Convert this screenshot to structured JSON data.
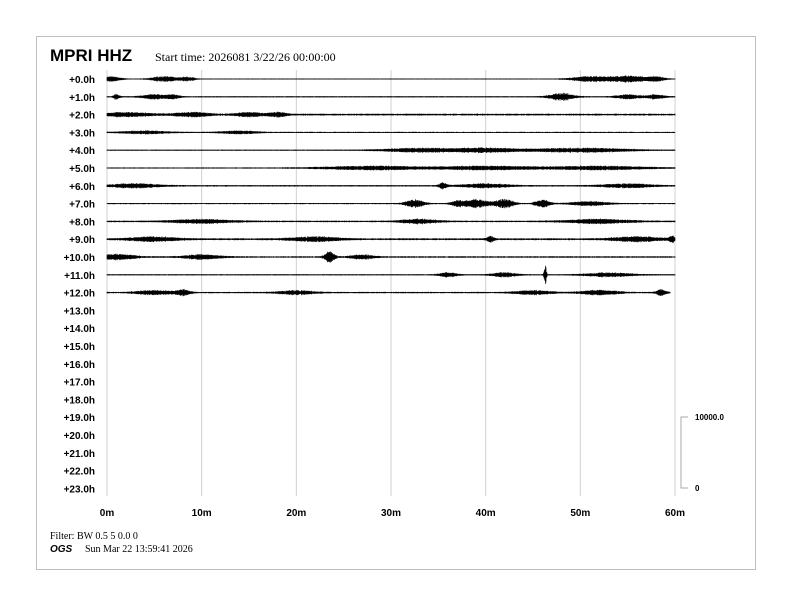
{
  "header": {
    "station": "MPRI HHZ",
    "start_time": "Start time: 2026081  3/22/26 00:00:00"
  },
  "footer": {
    "filter": "Filter: BW 0.5 5 0.0 0",
    "org": "OGS",
    "generated": "Sun Mar 22 13:59:41 2026"
  },
  "chart_data": {
    "type": "line",
    "subtype": "helicorder",
    "x_ticks": [
      "0m",
      "10m",
      "20m",
      "30m",
      "40m",
      "50m",
      "60m"
    ],
    "xlim": [
      0,
      60
    ],
    "row_labels": [
      "+0.0h",
      "+1.0h",
      "+2.0h",
      "+3.0h",
      "+4.0h",
      "+5.0h",
      "+6.0h",
      "+7.0h",
      "+8.0h",
      "+9.0h",
      "+10.0h",
      "+11.0h",
      "+12.0h",
      "+13.0h",
      "+14.0h",
      "+15.0h",
      "+16.0h",
      "+17.0h",
      "+18.0h",
      "+19.0h",
      "+20.0h",
      "+21.0h",
      "+22.0h",
      "+23.0h"
    ],
    "grid": "vertical",
    "scale_bar": {
      "top_label": "10000.0",
      "bottom_label": "0"
    },
    "trace_color": "#000000",
    "grid_color": "#d0d0d0",
    "rows": [
      {
        "hour": 0,
        "end_minute": 60,
        "noise": 0.35,
        "bursts": [
          [
            0.5,
            1.5,
            2.2
          ],
          [
            6,
            2,
            2.5
          ],
          [
            8.5,
            1.2,
            2
          ],
          [
            51,
            3,
            2.5
          ],
          [
            55,
            3,
            3
          ],
          [
            58,
            1.5,
            2
          ]
        ]
      },
      {
        "hour": 1,
        "end_minute": 60,
        "noise": 0.45,
        "bursts": [
          [
            1,
            0.5,
            2.5
          ],
          [
            5,
            2,
            2.2
          ],
          [
            7,
            1,
            2
          ],
          [
            48,
            2,
            3.5
          ],
          [
            55,
            2,
            2
          ],
          [
            58,
            1.5,
            2
          ]
        ]
      },
      {
        "hour": 2,
        "end_minute": 60,
        "noise": 0.7,
        "bursts": [
          [
            2,
            4,
            1.8
          ],
          [
            9,
            3,
            1.8
          ],
          [
            15,
            2,
            2
          ],
          [
            18,
            1.5,
            2
          ]
        ]
      },
      {
        "hour": 3,
        "end_minute": 60,
        "noise": 0.45,
        "bursts": [
          [
            4,
            4,
            1.4
          ],
          [
            14,
            3,
            1.4
          ]
        ]
      },
      {
        "hour": 4,
        "end_minute": 60,
        "noise": 0.4,
        "bursts": [
          [
            33,
            6,
            2
          ],
          [
            40,
            5,
            2
          ],
          [
            50,
            8,
            2
          ]
        ]
      },
      {
        "hour": 5,
        "end_minute": 60,
        "noise": 0.45,
        "bursts": [
          [
            28,
            8,
            1.8
          ],
          [
            40,
            8,
            1.8
          ],
          [
            52,
            8,
            1.8
          ]
        ]
      },
      {
        "hour": 6,
        "end_minute": 60,
        "noise": 0.55,
        "bursts": [
          [
            3,
            4,
            2
          ],
          [
            35.5,
            0.6,
            3
          ],
          [
            40,
            4,
            1.8
          ],
          [
            55,
            4,
            1.8
          ]
        ]
      },
      {
        "hour": 7,
        "end_minute": 60,
        "noise": 0.45,
        "bursts": [
          [
            32.5,
            1.5,
            3.5
          ],
          [
            37,
            1,
            2.5
          ],
          [
            39,
            2,
            4
          ],
          [
            42,
            1.5,
            4
          ],
          [
            46,
            1.2,
            3.5
          ],
          [
            51,
            3,
            2
          ]
        ]
      },
      {
        "hour": 8,
        "end_minute": 60,
        "noise": 0.6,
        "bursts": [
          [
            10,
            5,
            1.8
          ],
          [
            33,
            3,
            2
          ],
          [
            52,
            5,
            2
          ]
        ]
      },
      {
        "hour": 9,
        "end_minute": 60,
        "noise": 0.7,
        "bursts": [
          [
            5,
            4,
            2
          ],
          [
            22,
            4,
            2
          ],
          [
            40.5,
            0.6,
            2.8
          ],
          [
            56,
            4,
            2.2
          ],
          [
            59.7,
            0.4,
            2.8
          ]
        ]
      },
      {
        "hour": 10,
        "end_minute": 60,
        "noise": 0.6,
        "bursts": [
          [
            1,
            3,
            2.5
          ],
          [
            10,
            3,
            2
          ],
          [
            23.5,
            0.8,
            5
          ],
          [
            27,
            2,
            1.8
          ]
        ]
      },
      {
        "hour": 11,
        "end_minute": 60,
        "noise": 0.45,
        "bursts": [
          [
            36,
            1.5,
            2.2
          ],
          [
            42,
            2,
            2
          ],
          [
            46.3,
            0.2,
            9
          ],
          [
            53,
            4,
            1.8
          ]
        ]
      },
      {
        "hour": 12,
        "end_minute": 59.5,
        "noise": 0.55,
        "bursts": [
          [
            5,
            3,
            2
          ],
          [
            8,
            1.2,
            2.5
          ],
          [
            20,
            3,
            1.8
          ],
          [
            45,
            3,
            1.8
          ],
          [
            52,
            3,
            2.2
          ],
          [
            58.5,
            0.8,
            2.5
          ]
        ]
      }
    ]
  }
}
